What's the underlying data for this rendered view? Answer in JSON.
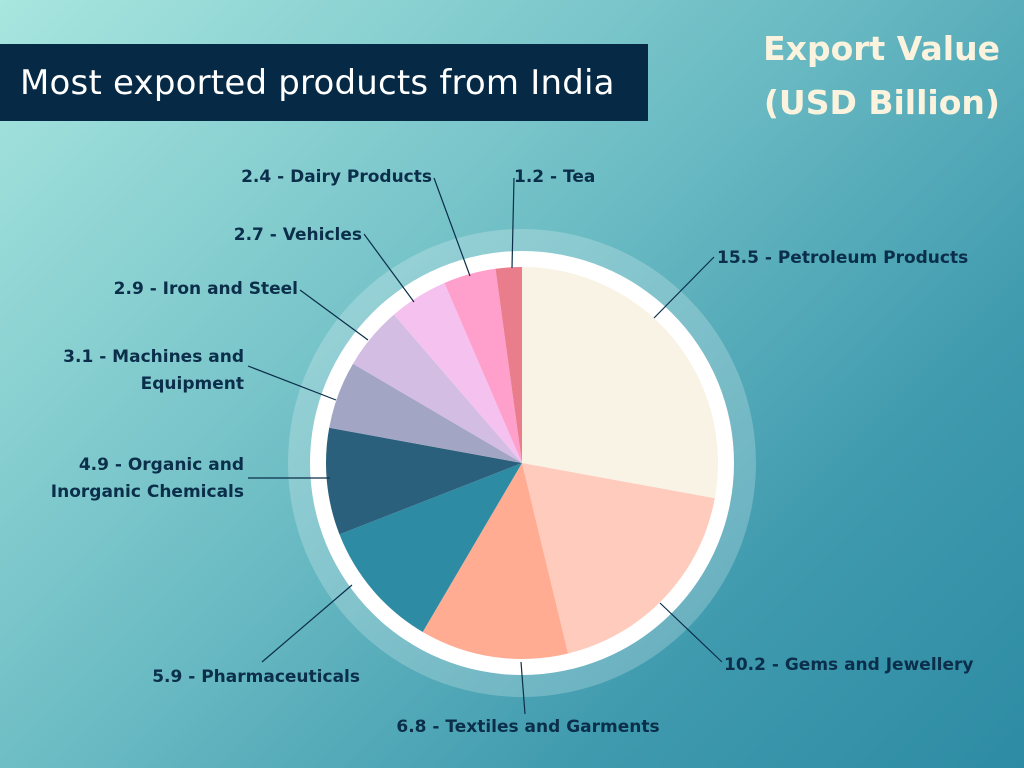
{
  "header": {
    "title": "Most exported products from India",
    "subtitle_line1": "Export Value",
    "subtitle_line2": "(USD Billion)"
  },
  "chart_data": {
    "type": "pie",
    "title": "Most exported products from India",
    "subtitle": "Export Value (USD Billion)",
    "legend": "none",
    "slices": [
      {
        "label": "Petroleum Products",
        "value": 15.5,
        "text": "15.5 - Petroleum Products",
        "color": "#f9f3e5"
      },
      {
        "label": "Gems and Jewellery",
        "value": 10.2,
        "text": "10.2 - Gems and Jewellery",
        "color": "#ffcbbd"
      },
      {
        "label": "Textiles and Garments",
        "value": 6.8,
        "text": "6.8 - Textiles and Garments",
        "color": "#ffac93"
      },
      {
        "label": "Pharmaceuticals",
        "value": 5.9,
        "text": "5.9 - Pharmaceuticals",
        "color": "#2d8ba4"
      },
      {
        "label": "Organic and Inorganic Chemicals",
        "value": 4.9,
        "text": "4.9 - Organic and Inorganic Chemicals",
        "text_lines": [
          "4.9 - Organic and",
          "Inorganic Chemicals"
        ],
        "color": "#2a607c"
      },
      {
        "label": "Machines and Equipment",
        "value": 3.1,
        "text": "3.1 - Machines and Equipment",
        "text_lines": [
          "3.1 - Machines and",
          "Equipment"
        ],
        "color": "#a3a5c4"
      },
      {
        "label": "Iron and Steel",
        "value": 2.9,
        "text": "2.9 - Iron and Steel",
        "color": "#d3bde3"
      },
      {
        "label": "Vehicles",
        "value": 2.7,
        "text": "2.7 - Vehicles",
        "color": "#f5c1ef"
      },
      {
        "label": "Dairy Products",
        "value": 2.4,
        "text": "2.4 - Dairy Products",
        "color": "#ff9fcc"
      },
      {
        "label": "Tea",
        "value": 1.2,
        "text": "1.2 - Tea",
        "color": "#ea7d8c"
      }
    ]
  }
}
